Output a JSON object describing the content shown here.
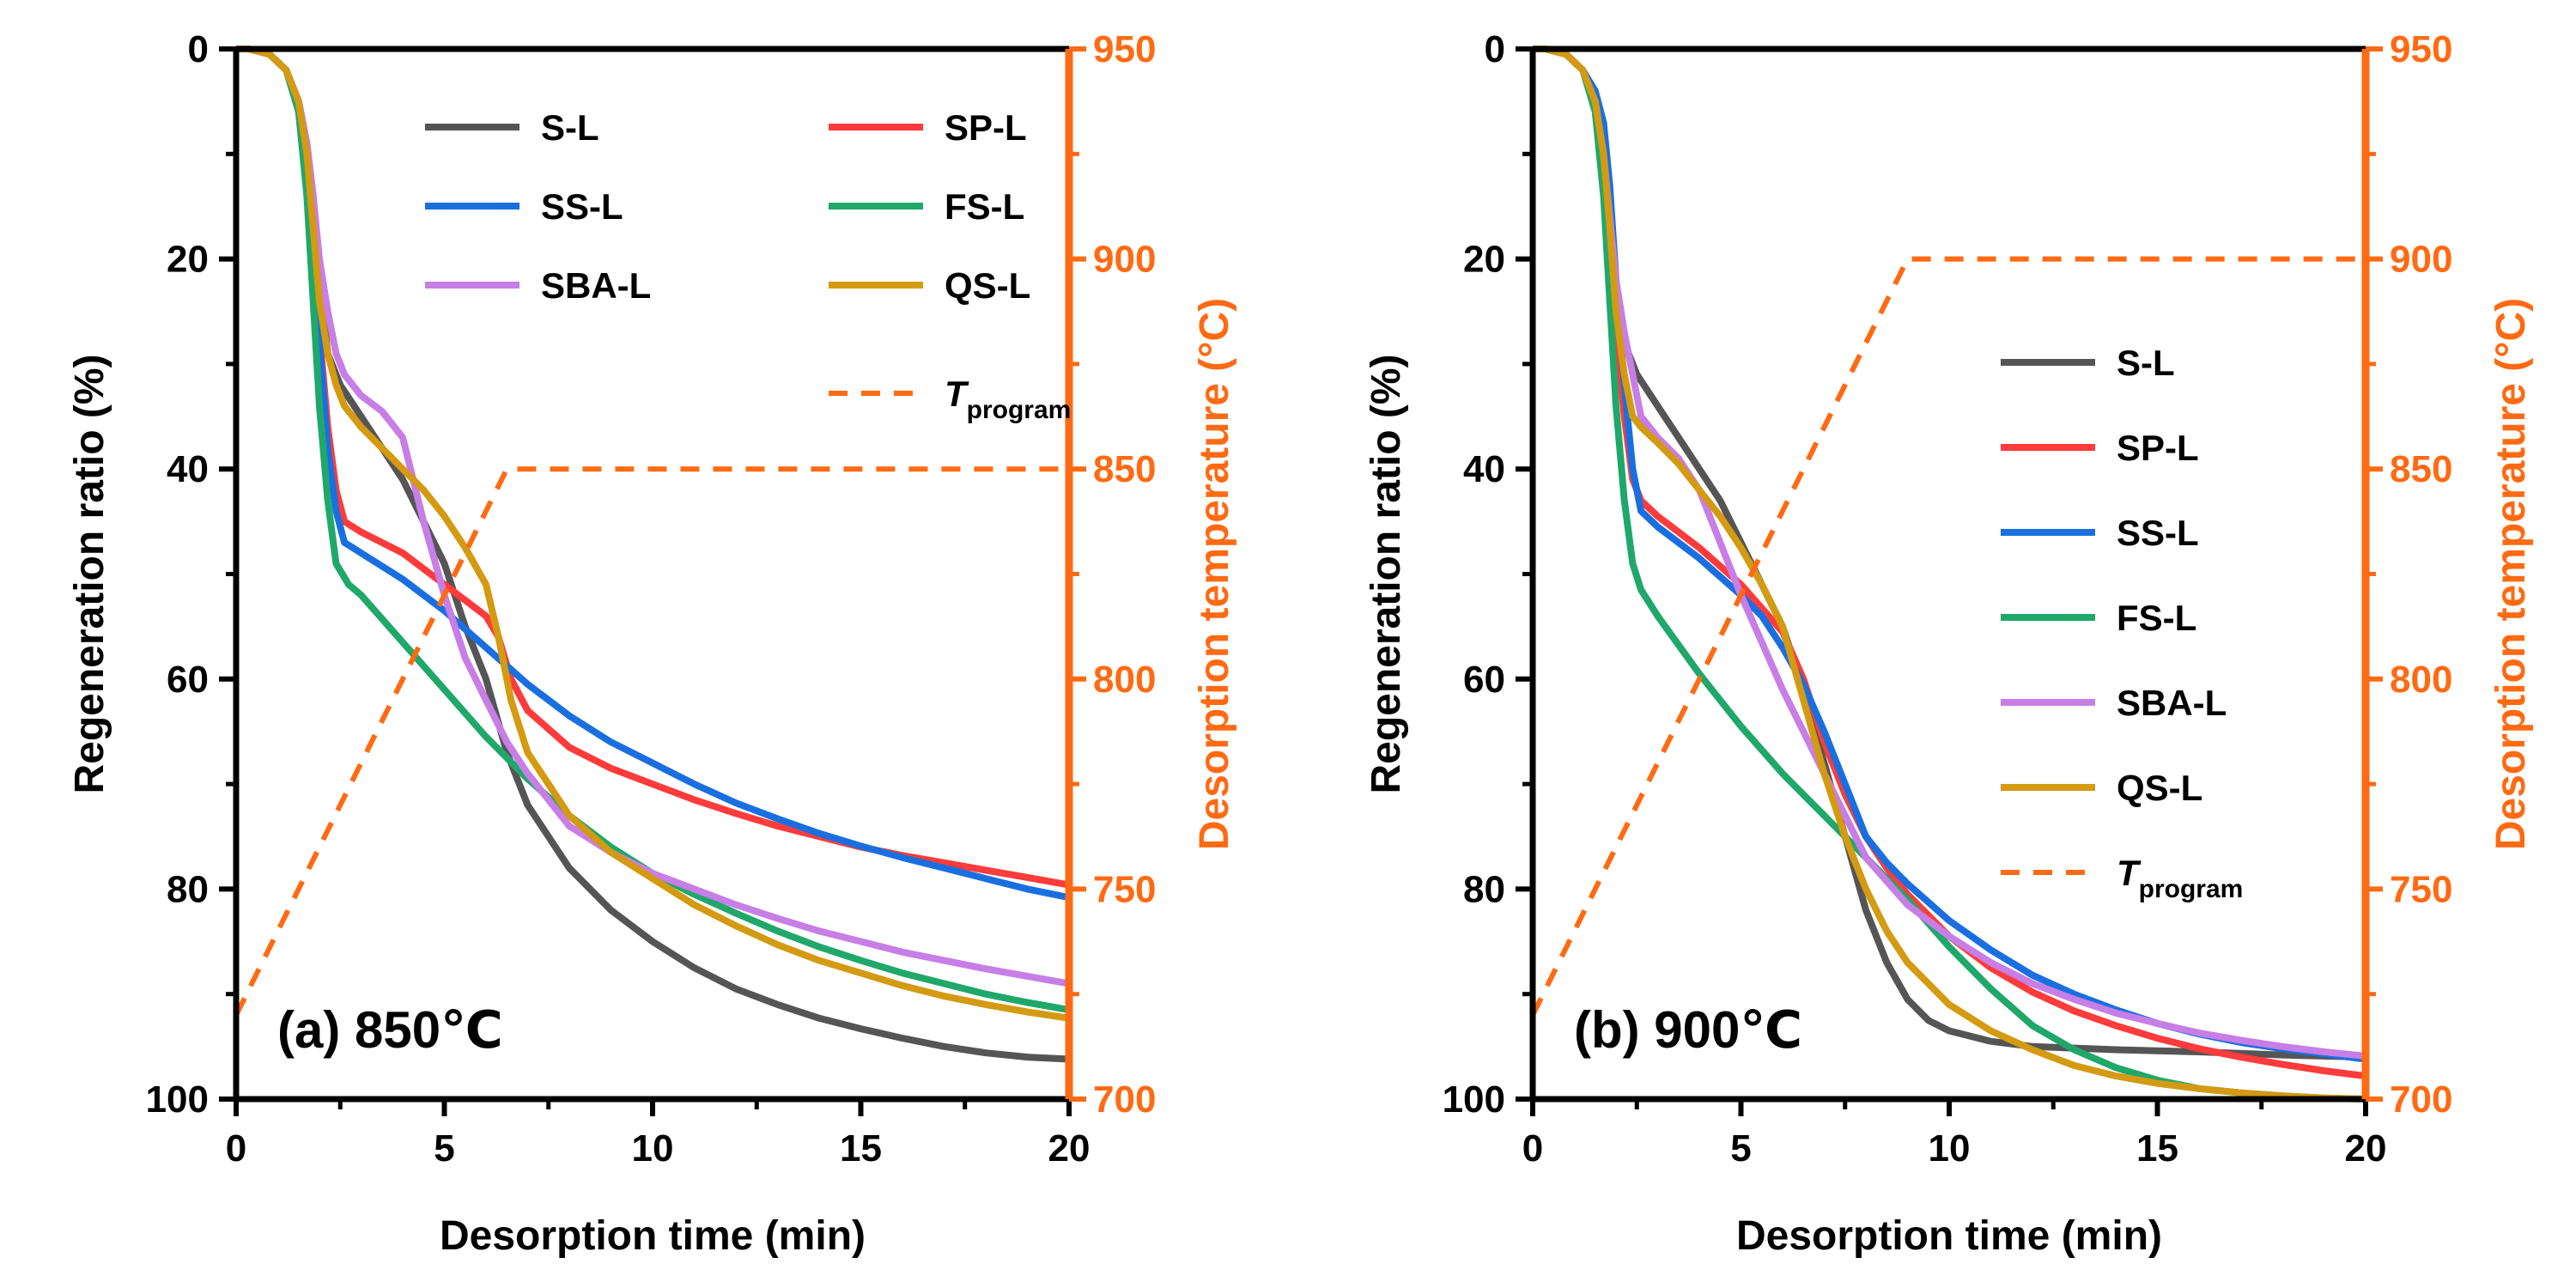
{
  "colors": {
    "S-L": "#555555",
    "SP-L": "#ff3b3b",
    "SS-L": "#1a6fe0",
    "FS-L": "#1fa86a",
    "SBA-L": "#c77ee6",
    "QS-L": "#d39a12",
    "T_program": "#ff6a13"
  },
  "legend": {
    "T_main": "T",
    "T_sub": "program"
  },
  "chart_data": [
    {
      "type": "line",
      "panel_label": "(a) 850℃",
      "xlabel": "Desorption time (min)",
      "ylabel": "Regeneration ratio (%)",
      "y2label": "Desorption temperature (°C)",
      "xlim": [
        0,
        20
      ],
      "ylim": [
        0,
        100
      ],
      "y_inverted": true,
      "y2lim": [
        700,
        950
      ],
      "xticks": [
        "0",
        "5",
        "10",
        "15",
        "20"
      ],
      "yticks": [
        "0",
        "20",
        "40",
        "60",
        "80",
        "100"
      ],
      "y2ticks": [
        "700",
        "750",
        "800",
        "850",
        "900",
        "950"
      ],
      "legend_position": "top",
      "legend_columns": 2,
      "series": [
        {
          "name": "S-L",
          "x": [
            0,
            0.3,
            0.8,
            1.2,
            1.5,
            1.7,
            1.85,
            2.0,
            2.2,
            2.5,
            3.0,
            3.5,
            4.0,
            4.5,
            5.0,
            5.5,
            6.0,
            6.5,
            7.0,
            8.0,
            9.0,
            10.0,
            11.0,
            12.0,
            13.0,
            14.0,
            15.0,
            16.0,
            17.0,
            18.0,
            19.0,
            20.0
          ],
          "values": [
            0,
            0,
            0.5,
            2,
            5,
            9,
            14,
            22,
            29,
            32,
            35,
            38,
            41,
            45,
            49,
            55,
            60,
            67,
            72,
            78,
            82,
            85,
            87.5,
            89.5,
            91,
            92.3,
            93.3,
            94.2,
            95,
            95.6,
            96,
            96.2
          ]
        },
        {
          "name": "SP-L",
          "x": [
            0,
            0.3,
            0.8,
            1.2,
            1.5,
            1.7,
            1.85,
            2.0,
            2.2,
            2.4,
            2.6,
            3.0,
            4.0,
            5.0,
            5.5,
            6.0,
            6.3,
            6.6,
            7.0,
            8.0,
            9.0,
            10.0,
            11.0,
            12.0,
            13.0,
            14.0,
            15.0,
            16.0,
            17.0,
            18.0,
            19.0,
            20.0
          ],
          "values": [
            0,
            0,
            0.5,
            2,
            5,
            10,
            17,
            27,
            36,
            42,
            45,
            46,
            48,
            51,
            52.5,
            54,
            56,
            60,
            63,
            66.5,
            68.5,
            70,
            71.5,
            72.8,
            74,
            75,
            76,
            76.8,
            77.5,
            78.2,
            78.9,
            79.6
          ]
        },
        {
          "name": "SS-L",
          "x": [
            0,
            0.3,
            0.8,
            1.2,
            1.5,
            1.7,
            1.85,
            2.0,
            2.2,
            2.4,
            2.6,
            3.0,
            4.0,
            5.0,
            6.0,
            7.0,
            8.0,
            9.0,
            10.0,
            11.0,
            12.0,
            13.0,
            14.0,
            15.0,
            16.0,
            17.0,
            18.0,
            19.0,
            20.0
          ],
          "values": [
            0,
            0,
            0.5,
            2,
            5,
            10,
            18,
            28,
            38,
            44,
            47,
            48,
            50.5,
            53.5,
            57,
            60.5,
            63.5,
            66,
            68,
            70,
            71.8,
            73.3,
            74.7,
            75.9,
            77,
            78,
            79,
            80,
            80.8
          ]
        },
        {
          "name": "FS-L",
          "x": [
            0,
            0.3,
            0.8,
            1.2,
            1.5,
            1.7,
            1.85,
            2.0,
            2.2,
            2.4,
            2.7,
            3.0,
            4.0,
            5.0,
            6.0,
            7.0,
            8.0,
            9.0,
            10.0,
            11.0,
            12.0,
            13.0,
            14.0,
            15.0,
            16.0,
            17.0,
            18.0,
            19.0,
            20.0
          ],
          "values": [
            0,
            0,
            0.5,
            2,
            6,
            14,
            24,
            34,
            43,
            49,
            51,
            52,
            56.5,
            61,
            65.5,
            69.5,
            73,
            76,
            78.5,
            80.5,
            82.3,
            84,
            85.5,
            86.8,
            88,
            89,
            90,
            90.8,
            91.5
          ]
        },
        {
          "name": "SBA-L",
          "x": [
            0,
            0.3,
            0.8,
            1.2,
            1.5,
            1.7,
            1.85,
            2.0,
            2.2,
            2.4,
            2.6,
            3.0,
            3.5,
            4.0,
            4.5,
            5.0,
            5.5,
            6.0,
            6.5,
            7.0,
            8.0,
            9.0,
            10.0,
            11.0,
            12.0,
            13.0,
            14.0,
            15.0,
            16.0,
            17.0,
            18.0,
            19.0,
            20.0
          ],
          "values": [
            0,
            0,
            0.5,
            2,
            5,
            9,
            14,
            20,
            25,
            29,
            31,
            33,
            34.5,
            37,
            45,
            52,
            58,
            62,
            66,
            69,
            74,
            76.5,
            78.5,
            80,
            81.5,
            82.8,
            84,
            85,
            86,
            86.8,
            87.6,
            88.3,
            89
          ]
        },
        {
          "name": "QS-L",
          "x": [
            0,
            0.3,
            0.8,
            1.2,
            1.5,
            1.7,
            1.85,
            2.0,
            2.2,
            2.4,
            2.6,
            3.0,
            3.5,
            4.0,
            4.5,
            5.0,
            5.5,
            6.0,
            6.3,
            6.6,
            7.0,
            8.0,
            9.0,
            10.0,
            11.0,
            12.0,
            13.0,
            14.0,
            15.0,
            16.0,
            17.0,
            18.0,
            19.0,
            20.0
          ],
          "values": [
            0,
            0,
            0.5,
            2,
            5,
            10,
            17,
            24,
            29,
            32,
            34,
            36,
            38,
            40,
            42,
            44.5,
            47.5,
            51,
            56,
            62,
            67,
            73,
            76.5,
            79,
            81.5,
            83.5,
            85.3,
            86.8,
            88,
            89.2,
            90.2,
            91,
            91.7,
            92.3
          ]
        },
        {
          "name": "T_program",
          "axis": "right",
          "dashed": true,
          "x": [
            0,
            6.5,
            20
          ],
          "values": [
            720,
            850,
            850
          ]
        }
      ]
    },
    {
      "type": "line",
      "panel_label": "(b) 900℃",
      "xlabel": "Desorption time (min)",
      "ylabel": "Regeneration ratio (%)",
      "y2label": "Desorption temperature (°C)",
      "xlim": [
        0,
        20
      ],
      "ylim": [
        0,
        100
      ],
      "y_inverted": true,
      "y2lim": [
        700,
        950
      ],
      "xticks": [
        "0",
        "5",
        "10",
        "15",
        "20"
      ],
      "yticks": [
        "0",
        "20",
        "40",
        "60",
        "80",
        "100"
      ],
      "y2ticks": [
        "700",
        "750",
        "800",
        "850",
        "900",
        "950"
      ],
      "legend_position": "center-right",
      "legend_columns": 1,
      "series": [
        {
          "name": "S-L",
          "x": [
            0,
            0.3,
            0.8,
            1.2,
            1.5,
            1.7,
            1.85,
            2.0,
            2.2,
            2.5,
            3.0,
            3.5,
            4.0,
            4.5,
            5.0,
            5.5,
            6.0,
            6.5,
            7.0,
            7.5,
            8.0,
            8.5,
            9.0,
            9.5,
            10.0,
            11.0,
            12.0,
            14.0,
            16.0,
            18.0,
            20.0
          ],
          "values": [
            0,
            0,
            0.5,
            2,
            5,
            9,
            14,
            22,
            28,
            31,
            34,
            37,
            40,
            43,
            47,
            51,
            55,
            61,
            68,
            75,
            82,
            87,
            90.5,
            92.5,
            93.5,
            94.5,
            95,
            95.3,
            95.5,
            95.8,
            96
          ]
        },
        {
          "name": "SP-L",
          "x": [
            0,
            0.3,
            0.8,
            1.2,
            1.5,
            1.7,
            1.85,
            2.0,
            2.2,
            2.4,
            2.6,
            3.0,
            4.0,
            5.0,
            6.0,
            6.5,
            7.0,
            7.5,
            8.0,
            8.5,
            9.0,
            10.0,
            11.0,
            12.0,
            13.0,
            14.0,
            15.0,
            16.0,
            17.0,
            18.0,
            19.0,
            20.0
          ],
          "values": [
            0,
            0,
            0.5,
            2,
            5,
            10,
            17,
            27,
            35,
            41,
            43,
            44.5,
            47.5,
            51,
            55.5,
            60,
            66,
            71,
            75,
            78,
            80.5,
            84.5,
            87.5,
            89.8,
            91.6,
            93,
            94.2,
            95.2,
            96,
            96.7,
            97.3,
            97.8
          ]
        },
        {
          "name": "SS-L",
          "x": [
            0,
            0.3,
            0.8,
            1.2,
            1.5,
            1.7,
            1.85,
            2.0,
            2.2,
            2.4,
            2.6,
            3.0,
            4.0,
            5.0,
            5.5,
            6.0,
            6.5,
            7.0,
            7.5,
            8.0,
            8.5,
            9.0,
            10.0,
            11.0,
            12.0,
            13.0,
            14.0,
            15.0,
            16.0,
            17.0,
            18.0,
            19.0,
            20.0
          ],
          "values": [
            0,
            0,
            0.5,
            2,
            4,
            7,
            13,
            22,
            32,
            40,
            44,
            45.5,
            48.5,
            52,
            54,
            57,
            60.5,
            65,
            70,
            75,
            77.5,
            79.5,
            83,
            85.8,
            88.2,
            90,
            91.5,
            92.8,
            93.8,
            94.6,
            95.2,
            95.7,
            96.2
          ]
        },
        {
          "name": "FS-L",
          "x": [
            0,
            0.3,
            0.8,
            1.2,
            1.5,
            1.7,
            1.85,
            2.0,
            2.2,
            2.4,
            2.6,
            3.0,
            4.0,
            5.0,
            6.0,
            7.0,
            8.0,
            9.0,
            10.0,
            11.0,
            12.0,
            13.0,
            14.0,
            15.0,
            16.0,
            17.0,
            18.0,
            19.0,
            20.0
          ],
          "values": [
            0,
            0,
            0.5,
            2,
            6,
            14,
            24,
            34,
            43,
            49,
            51.5,
            54,
            59.5,
            64.5,
            69,
            73,
            77,
            81,
            85.5,
            89.5,
            93,
            95.3,
            97,
            98.2,
            99,
            99.4,
            99.7,
            99.9,
            100
          ]
        },
        {
          "name": "SBA-L",
          "x": [
            0,
            0.3,
            0.8,
            1.2,
            1.5,
            1.7,
            1.85,
            2.0,
            2.2,
            2.4,
            2.6,
            3.0,
            3.5,
            4.0,
            4.5,
            5.0,
            5.5,
            6.0,
            6.5,
            7.0,
            7.5,
            8.0,
            9.0,
            10.0,
            11.0,
            12.0,
            13.0,
            14.0,
            15.0,
            16.0,
            17.0,
            18.0,
            19.0,
            20.0
          ],
          "values": [
            0,
            0,
            0.5,
            2,
            5,
            10,
            16,
            22,
            27,
            31,
            35,
            37,
            39,
            42,
            47,
            52,
            56.5,
            61,
            65,
            69,
            73,
            77,
            81.5,
            84.5,
            87,
            89,
            90.5,
            91.8,
            92.8,
            93.7,
            94.4,
            95,
            95.5,
            95.9
          ]
        },
        {
          "name": "QS-L",
          "x": [
            0,
            0.3,
            0.8,
            1.2,
            1.5,
            1.7,
            1.85,
            2.0,
            2.2,
            2.4,
            2.6,
            3.0,
            3.5,
            4.0,
            4.5,
            5.0,
            5.5,
            6.0,
            6.5,
            7.0,
            7.5,
            8.0,
            8.5,
            9.0,
            10.0,
            11.0,
            12.0,
            13.0,
            14.0,
            15.0,
            16.0,
            17.0,
            18.0,
            19.0,
            20.0
          ],
          "values": [
            0,
            0,
            0.5,
            2,
            5,
            10,
            17,
            25,
            31,
            35,
            36,
            37.5,
            39.5,
            42,
            44.5,
            47.5,
            51,
            55,
            62,
            69,
            75,
            80,
            84,
            87,
            91,
            93.5,
            95.3,
            96.8,
            97.8,
            98.5,
            99,
            99.4,
            99.7,
            99.9,
            100
          ]
        },
        {
          "name": "T_program",
          "axis": "right",
          "dashed": true,
          "x": [
            0,
            9,
            20
          ],
          "values": [
            720,
            900,
            900
          ]
        }
      ]
    }
  ]
}
